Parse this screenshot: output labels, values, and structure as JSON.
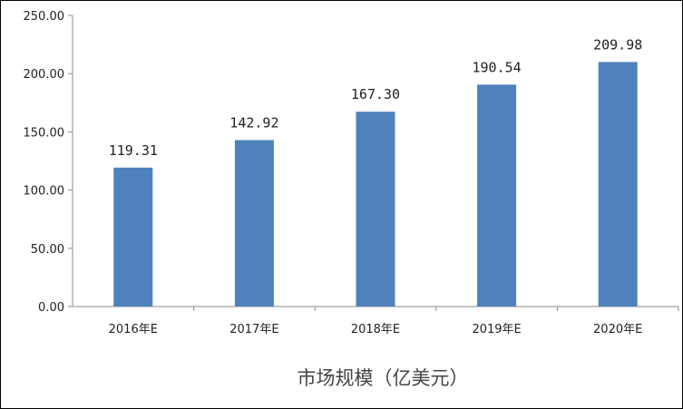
{
  "chart_data": {
    "type": "bar",
    "categories": [
      "2016年E",
      "2017年E",
      "2018年E",
      "2019年E",
      "2020年E"
    ],
    "values": [
      119.31,
      142.92,
      167.3,
      190.54,
      209.98
    ],
    "data_labels": [
      "119.31",
      "142.92",
      "167.30",
      "190.54",
      "209.98"
    ],
    "y_ticks": [
      "0.00",
      "50.00",
      "100.00",
      "150.00",
      "200.00",
      "250.00"
    ],
    "ylim": [
      0,
      250
    ],
    "xlabel": "市场规模（亿美元）",
    "ylabel": "",
    "title": "",
    "grid": false,
    "legend": "none",
    "bar_color": "#4F81BD"
  }
}
